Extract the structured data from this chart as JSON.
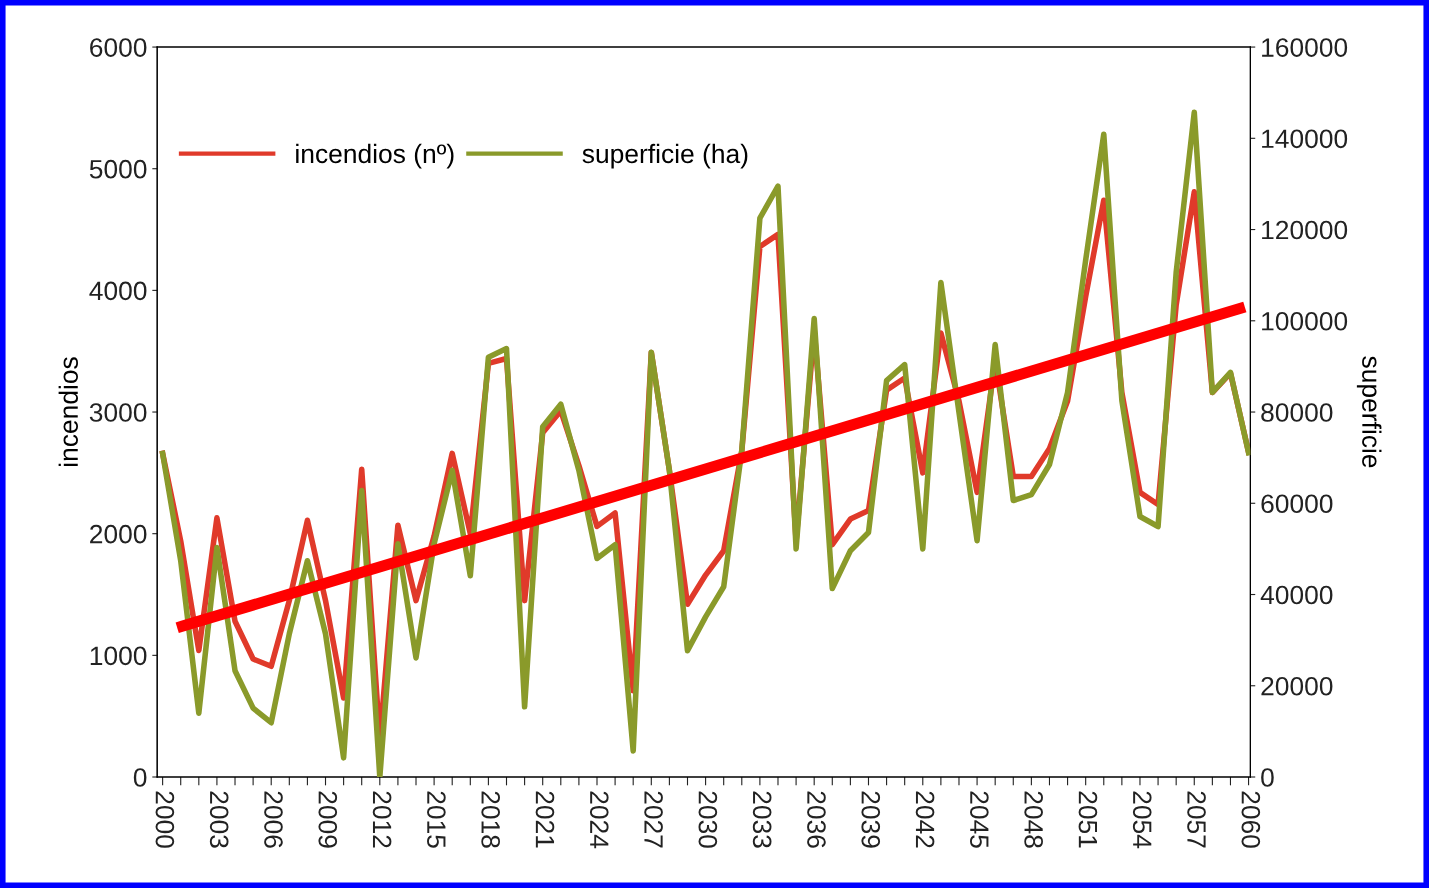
{
  "chart_data": {
    "type": "line",
    "ylabel": "incendios",
    "y2label": "superficie",
    "x": [
      2000,
      2001,
      2002,
      2003,
      2004,
      2005,
      2006,
      2007,
      2008,
      2009,
      2010,
      2011,
      2012,
      2013,
      2014,
      2015,
      2016,
      2017,
      2018,
      2019,
      2020,
      2021,
      2022,
      2023,
      2024,
      2025,
      2026,
      2027,
      2028,
      2029,
      2030,
      2031,
      2032,
      2033,
      2034,
      2035,
      2036,
      2037,
      2038,
      2039,
      2040,
      2041,
      2042,
      2043,
      2044,
      2045,
      2046,
      2047,
      2048,
      2049,
      2050,
      2051,
      2052,
      2053,
      2054,
      2055,
      2056,
      2057,
      2058,
      2059,
      2060
    ],
    "series": [
      {
        "name": "incendios (nº)",
        "color": "#e03a2a",
        "values": [
          2660,
          1940,
          1040,
          2130,
          1280,
          970,
          910,
          1450,
          2110,
          1450,
          650,
          2530,
          300,
          2070,
          1450,
          1980,
          2660,
          2000,
          3400,
          3440,
          1450,
          2830,
          3010,
          2560,
          2060,
          2170,
          710,
          3490,
          2520,
          1420,
          1660,
          1860,
          2680,
          4360,
          4460,
          1940,
          3670,
          1910,
          2120,
          2190,
          3180,
          3280,
          2500,
          3650,
          3090,
          2340,
          3420,
          2470,
          2470,
          2700,
          3090,
          3950,
          4740,
          3160,
          2340,
          2240,
          3880,
          4810,
          3160,
          3320,
          2670
        ]
      },
      {
        "name": "superficie (ha)",
        "color": "#8a9a2a",
        "axis": "y2",
        "values": [
          70900,
          47400,
          14000,
          50300,
          23300,
          15100,
          11900,
          31400,
          47400,
          31400,
          4200,
          62800,
          0,
          51100,
          26100,
          51100,
          67200,
          44100,
          92000,
          93900,
          15400,
          76800,
          81700,
          67200,
          47900,
          50900,
          5700,
          93100,
          67200,
          27700,
          35100,
          41700,
          71600,
          122500,
          129500,
          50000,
          100500,
          41300,
          49600,
          53600,
          86900,
          90400,
          50000,
          108400,
          79900,
          51800,
          94800,
          60600,
          61900,
          68500,
          84300,
          113300,
          140900,
          82500,
          57100,
          54900,
          110600,
          145700,
          84300,
          88700,
          71100
        ]
      },
      {
        "type": "line",
        "color": "#ff0000",
        "x": [
          2001.1,
          2059.5
        ],
        "values": [
          1240,
          3850
        ]
      }
    ],
    "xlim": [
      1999.7,
      2060.1
    ],
    "xticks": [
      2000,
      {
        "value": 2001,
        "label": null
      },
      {
        "value": 2002,
        "label": null
      },
      2003,
      {
        "value": 2004,
        "label": null
      },
      {
        "value": 2005,
        "label": null
      },
      2006,
      {
        "value": 2007,
        "label": null
      },
      {
        "value": 2008,
        "label": null
      },
      2009,
      {
        "value": 2010,
        "label": null
      },
      {
        "value": 2011,
        "label": null
      },
      2012,
      {
        "value": 2013,
        "label": null
      },
      {
        "value": 2014,
        "label": null
      },
      2015,
      {
        "value": 2016,
        "label": null
      },
      {
        "value": 2017,
        "label": null
      },
      2018,
      {
        "value": 2019,
        "label": null
      },
      {
        "value": 2020,
        "label": null
      },
      2021,
      {
        "value": 2022,
        "label": null
      },
      {
        "value": 2023,
        "label": null
      },
      2024,
      {
        "value": 2025,
        "label": null
      },
      {
        "value": 2026,
        "label": null
      },
      2027,
      {
        "value": 2028,
        "label": null
      },
      {
        "value": 2029,
        "label": null
      },
      2030,
      {
        "value": 2031,
        "label": null
      },
      {
        "value": 2032,
        "label": null
      },
      2033,
      {
        "value": 2034,
        "label": null
      },
      {
        "value": 2035,
        "label": null
      },
      2036,
      {
        "value": 2037,
        "label": null
      },
      {
        "value": 2038,
        "label": null
      },
      2039,
      {
        "value": 2040,
        "label": null
      },
      {
        "value": 2041,
        "label": null
      },
      2042,
      {
        "value": 2043,
        "label": null
      },
      {
        "value": 2044,
        "label": null
      },
      2045,
      {
        "value": 2046,
        "label": null
      },
      {
        "value": 2047,
        "label": null
      },
      2048,
      {
        "value": 2049,
        "label": null
      },
      {
        "value": 2050,
        "label": null
      },
      2051,
      {
        "value": 2052,
        "label": null
      },
      {
        "value": 2053,
        "label": null
      },
      2054,
      {
        "value": 2055,
        "label": null
      },
      {
        "value": 2056,
        "label": null
      },
      2057,
      {
        "value": 2058,
        "label": null
      },
      {
        "value": 2059,
        "label": null
      },
      2060
    ],
    "ylim": [
      0,
      6000
    ],
    "yticks": [
      0,
      1000,
      2000,
      3000,
      4000,
      5000,
      6000
    ],
    "y2lim": [
      0,
      160000
    ],
    "y2ticks": [
      0,
      20000,
      40000,
      60000,
      80000,
      100000,
      120000,
      140000,
      160000
    ],
    "grid": false,
    "legend": "top left",
    "marker": "none",
    "line_style": "solid"
  }
}
